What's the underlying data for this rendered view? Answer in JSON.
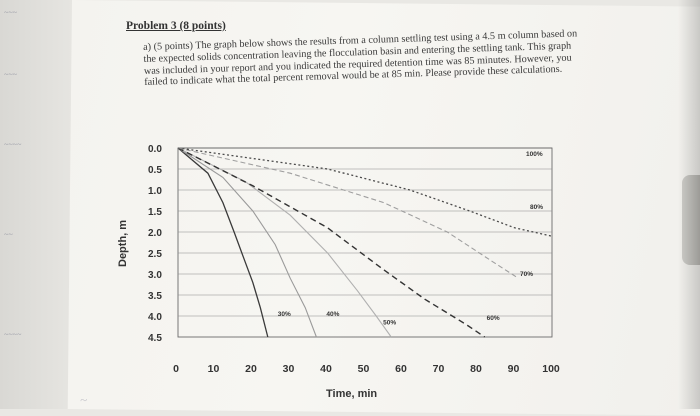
{
  "problem": {
    "title": "Problem 3 (8 points)",
    "text": "a) (5 points) The graph below shows the results from a column settling test using a 4.5 m column based on the expected solids concentration leaving the flocculation basin and entering the settling tank. This graph was included in your report and you indicated the required detention time was 85 minutes. However, you failed to indicate what the total percent removal would be at 85 min. Please provide these calculations."
  },
  "chart_data": {
    "type": "line",
    "title": "",
    "xlabel": "Time, min",
    "ylabel": "Depth, m",
    "xlim": [
      0,
      100
    ],
    "ylim": [
      0,
      4.5
    ],
    "y_inverted": true,
    "xticks": [
      "0",
      "10",
      "20",
      "30",
      "40",
      "50",
      "60",
      "70",
      "80",
      "90",
      "100"
    ],
    "yticks": [
      "0.0",
      "0.5",
      "1.0",
      "1.5",
      "2.0",
      "2.5",
      "3.0",
      "3.5",
      "4.0",
      "4.5"
    ],
    "grid": "horizontal",
    "series": [
      {
        "name": "",
        "label": "30%",
        "points": [
          [
            0,
            0
          ],
          [
            8,
            0.6
          ],
          [
            12,
            1.3
          ],
          [
            15,
            2.0
          ],
          [
            17.5,
            2.6
          ],
          [
            20,
            3.2
          ],
          [
            22,
            3.8
          ],
          [
            24,
            4.5
          ]
        ]
      },
      {
        "name": "",
        "label": "40%",
        "points": [
          [
            0,
            0
          ],
          [
            12,
            0.7
          ],
          [
            20,
            1.5
          ],
          [
            26,
            2.3
          ],
          [
            30,
            3.1
          ],
          [
            34,
            3.8
          ],
          [
            37,
            4.5
          ]
        ]
      },
      {
        "name": "",
        "label": "50%",
        "points": [
          [
            0,
            0
          ],
          [
            18,
            0.8
          ],
          [
            30,
            1.6
          ],
          [
            40,
            2.5
          ],
          [
            48,
            3.4
          ],
          [
            53,
            4.0
          ],
          [
            57,
            4.5
          ]
        ]
      },
      {
        "name": "",
        "label": "60%",
        "points": [
          [
            0,
            0
          ],
          [
            20,
            0.9
          ],
          [
            40,
            1.9
          ],
          [
            55,
            2.9
          ],
          [
            66,
            3.6
          ],
          [
            77,
            4.2
          ],
          [
            82,
            4.5
          ]
        ]
      },
      {
        "name": "",
        "label": "70%",
        "points": [
          [
            0,
            0
          ],
          [
            30,
            0.6
          ],
          [
            55,
            1.3
          ],
          [
            72,
            2.0
          ],
          [
            84,
            2.7
          ],
          [
            91,
            3.1
          ]
        ]
      },
      {
        "name": "",
        "label": "80%",
        "points": [
          [
            0,
            0
          ],
          [
            40,
            0.5
          ],
          [
            62,
            1.0
          ],
          [
            78,
            1.5
          ],
          [
            90,
            1.9
          ],
          [
            100,
            2.1
          ]
        ]
      },
      {
        "name": "",
        "label": "100%",
        "points": [
          [
            0,
            0
          ],
          [
            100,
            0
          ]
        ]
      }
    ]
  }
}
